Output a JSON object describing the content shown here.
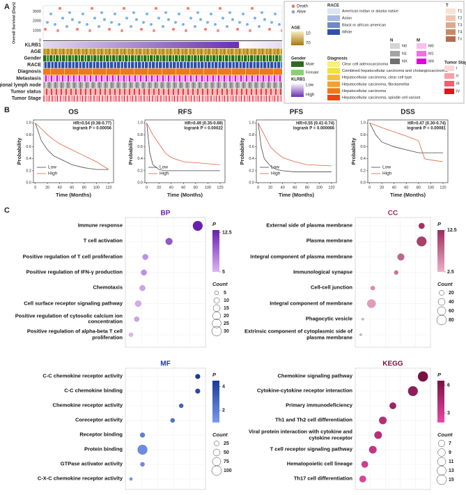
{
  "panel_labels": [
    "A",
    "B",
    "C"
  ],
  "chart_data": [
    {
      "type": "heatmap",
      "y_axis_label": "Overall Survival (Days)",
      "ylim": [
        0,
        3600
      ],
      "yticks": [
        0,
        1000,
        2000,
        3000
      ],
      "tracks": [
        "KLRB1",
        "AGE",
        "Gender",
        "RACE",
        "Diagnosis",
        "Metastasis",
        "Regional lymph node",
        "Tumor status",
        "Tumor Stage"
      ],
      "legends": [
        {
          "items": [
            {
              "label": "Death",
              "color": "#f07878"
            },
            {
              "label": "Alive",
              "color": "#7ab0f0"
            }
          ]
        },
        {
          "title": "AGE",
          "low": 10,
          "high": 70,
          "colors": [
            "#f7ecc0",
            "#a87810"
          ]
        },
        {
          "title": "RACE",
          "items": [
            {
              "label": "American indian or alaska native",
              "color": "#dde4f4"
            },
            {
              "label": "Asian",
              "color": "#a8b8e0"
            },
            {
              "label": "Black or african american",
              "color": "#6f88c8"
            },
            {
              "label": "White",
              "color": "#2f50a8"
            }
          ]
        },
        {
          "title": "N",
          "items": [
            {
              "label": "N0",
              "color": "#d4d4d4"
            },
            {
              "label": "N1",
              "color": "#a4a4a4"
            },
            {
              "label": "NX",
              "color": "#707070"
            }
          ]
        },
        {
          "title": "M",
          "items": [
            {
              "label": "M0",
              "color": "#f8c0ec"
            },
            {
              "label": "M1",
              "color": "#f070e0"
            },
            {
              "label": "MX",
              "color": "#e000e0"
            }
          ]
        },
        {
          "title": "T",
          "items": [
            {
              "label": "T1",
              "color": "#f8e2d2"
            },
            {
              "label": "T2",
              "color": "#ecc8b0"
            },
            {
              "label": "T3",
              "color": "#dca888"
            },
            {
              "label": "T4",
              "color": "#c88a66"
            },
            {
              "label": "Tx",
              "color": "#b07050"
            }
          ]
        },
        {
          "title": "Gender",
          "items": [
            {
              "label": "Male",
              "color": "#2e6b1e"
            },
            {
              "label": "Female",
              "color": "#8ad070"
            }
          ]
        },
        {
          "title": "KLRB1",
          "low": "Low",
          "high": "High",
          "colors": [
            "#ffffff",
            "#6a2fb0"
          ]
        },
        {
          "title": "Diagnosis",
          "items": [
            {
              "label": "Clear cell adenocarcinoma",
              "color": "#f8f078"
            },
            {
              "label": "Combined hepatocellular carcinoma and cholangiocarcinoma",
              "color": "#f0e040"
            },
            {
              "label": "Hepatocellular carcinoma, clear cell type",
              "color": "#f8c040"
            },
            {
              "label": "Hepatocellular carcinoma, fibrolamellar",
              "color": "#f4a030"
            },
            {
              "label": "Hepatocellular carcinoma",
              "color": "#f07818"
            },
            {
              "label": "Hepatocellular carcinoma, spindle cell variant",
              "color": "#e84810"
            }
          ]
        },
        {
          "title": "Tumor Stage",
          "items": [
            {
              "label": "I",
              "color": "#fcd8d8"
            },
            {
              "label": "II",
              "color": "#f8a0a8"
            },
            {
              "label": "III",
              "color": "#f06070"
            },
            {
              "label": "IV",
              "color": "#e81020"
            }
          ]
        }
      ]
    },
    {
      "type": "line",
      "title": "OS",
      "hr": "HR=0.54 (0.38-0.77)",
      "logrank": "logrank P = 0.00056",
      "x_label": "Time (Months)",
      "y_label": "Probability",
      "xlim": [
        -3,
        128
      ],
      "xticks": [
        0,
        20,
        40,
        60,
        80,
        100,
        120
      ],
      "ylim": [
        0,
        1.05
      ],
      "yticks": [
        {
          "value": 0,
          "label": "0.0"
        },
        {
          "value": 0.2,
          "label": "0.2"
        },
        {
          "value": 0.4,
          "label": "0.4"
        },
        {
          "value": 0.6,
          "label": "0.6"
        },
        {
          "value": 0.8,
          "label": "0.8"
        },
        {
          "value": 1,
          "label": "1.0"
        }
      ],
      "series": [
        {
          "name": "Low",
          "color": "#444444",
          "x": [
            0,
            10,
            20,
            30,
            40,
            60,
            80,
            100,
            120
          ],
          "values": [
            1,
            0.7,
            0.55,
            0.45,
            0.4,
            0.3,
            0.25,
            0.22,
            0.22
          ]
        },
        {
          "name": "High",
          "color": "#e0603a",
          "x": [
            0,
            10,
            20,
            30,
            40,
            60,
            80,
            100,
            120
          ],
          "values": [
            1,
            0.9,
            0.8,
            0.72,
            0.65,
            0.55,
            0.45,
            0.35,
            0.22
          ]
        }
      ]
    },
    {
      "type": "line",
      "title": "RFS",
      "hr": "HR=0.49 (0.35-0.69)",
      "logrank": "logrank P = 0.00022",
      "x_label": "Time (Months)",
      "y_label": "Probability",
      "xlim": [
        -3,
        128
      ],
      "xticks": [
        0,
        20,
        40,
        60,
        80,
        100,
        120
      ],
      "ylim": [
        0,
        1.05
      ],
      "yticks": [
        {
          "value": 0,
          "label": "0.0"
        },
        {
          "value": 0.2,
          "label": "0.2"
        },
        {
          "value": 0.4,
          "label": "0.4"
        },
        {
          "value": 0.6,
          "label": "0.6"
        },
        {
          "value": 0.8,
          "label": "0.8"
        },
        {
          "value": 1,
          "label": "1.0"
        }
      ],
      "series": [
        {
          "name": "Low",
          "color": "#444444",
          "x": [
            0,
            5,
            10,
            20,
            30,
            60,
            120
          ],
          "values": [
            1,
            0.5,
            0.3,
            0.22,
            0.2,
            0.2,
            0.2
          ]
        },
        {
          "name": "High",
          "color": "#e0603a",
          "x": [
            0,
            10,
            20,
            30,
            40,
            60,
            120
          ],
          "values": [
            1,
            0.8,
            0.65,
            0.5,
            0.42,
            0.35,
            0.3
          ]
        }
      ]
    },
    {
      "type": "line",
      "title": "PFS",
      "hr": "HR=0.55 (0.41-0.74)",
      "logrank": "logrank P = 0.000066",
      "x_label": "Time (Months)",
      "y_label": "Probability",
      "xlim": [
        -3,
        128
      ],
      "xticks": [
        0,
        20,
        40,
        60,
        80,
        100,
        120
      ],
      "ylim": [
        0,
        1.05
      ],
      "yticks": [
        {
          "value": 0,
          "label": "0.0"
        },
        {
          "value": 0.2,
          "label": "0.2"
        },
        {
          "value": 0.4,
          "label": "0.4"
        },
        {
          "value": 0.6,
          "label": "0.6"
        },
        {
          "value": 0.8,
          "label": "0.8"
        },
        {
          "value": 1,
          "label": "1.0"
        }
      ],
      "series": [
        {
          "name": "Low",
          "color": "#444444",
          "x": [
            0,
            5,
            10,
            20,
            30,
            40,
            60,
            120
          ],
          "values": [
            1,
            0.6,
            0.4,
            0.28,
            0.22,
            0.2,
            0.18,
            0.18
          ]
        },
        {
          "name": "High",
          "color": "#e0603a",
          "x": [
            0,
            10,
            20,
            30,
            40,
            60,
            80,
            120
          ],
          "values": [
            1,
            0.8,
            0.6,
            0.5,
            0.42,
            0.35,
            0.3,
            0.28
          ]
        }
      ]
    },
    {
      "type": "line",
      "title": "DSS",
      "hr": "HR=0.47 (0.30-0.74)",
      "logrank": "logrank P = 0.00081",
      "x_label": "Time (Months)",
      "y_label": "Probability",
      "xlim": [
        -3,
        128
      ],
      "xticks": [
        0,
        20,
        40,
        60,
        80,
        100,
        120
      ],
      "ylim": [
        0,
        1.05
      ],
      "yticks": [
        {
          "value": 0,
          "label": "0.0"
        },
        {
          "value": 0.2,
          "label": "0.2"
        },
        {
          "value": 0.4,
          "label": "0.4"
        },
        {
          "value": 0.6,
          "label": "0.6"
        },
        {
          "value": 0.8,
          "label": "0.8"
        },
        {
          "value": 1,
          "label": "1.0"
        }
      ],
      "series": [
        {
          "name": "Low",
          "color": "#444444",
          "x": [
            0,
            10,
            20,
            40,
            60,
            80,
            100,
            120
          ],
          "values": [
            1,
            0.8,
            0.68,
            0.6,
            0.55,
            0.5,
            0.5,
            0.5
          ]
        },
        {
          "name": "High",
          "color": "#e0603a",
          "x": [
            0,
            20,
            40,
            60,
            80,
            90,
            100,
            120
          ],
          "values": [
            1,
            0.92,
            0.85,
            0.78,
            0.7,
            0.4,
            0.38,
            0.35
          ]
        }
      ]
    },
    {
      "type": "dot",
      "title": "BP",
      "colors": [
        "#dcb4f4",
        "#6a1fb0"
      ],
      "xlim": [
        0,
        1
      ],
      "plim": [
        5,
        13
      ],
      "pticks": [
        5,
        12.5
      ],
      "p_title": "P",
      "count_title": "Count",
      "count_ticks": [
        5,
        10,
        15,
        20,
        25,
        30
      ],
      "categories": [
        "Immune response",
        "T cell activation",
        "Positive regulation of T cell proliferation",
        "Positive regulation of  IFN-γ production",
        "Chemotaxis",
        "Cell surface receptor signaling pathway",
        "Positive regulation of cytosolic calcium ion concentration",
        "Positive regulation of alpha-beta T cell proliferation"
      ],
      "x": [
        0.95,
        0.55,
        0.22,
        0.2,
        0.18,
        0.12,
        0.1,
        0.02
      ],
      "counts": [
        30,
        15,
        10,
        10,
        10,
        12,
        8,
        5
      ],
      "p": [
        13,
        10,
        7,
        7,
        6,
        5.5,
        6,
        5
      ]
    },
    {
      "type": "dot",
      "title": "CC",
      "colors": [
        "#ecb0c8",
        "#9c2c5c"
      ],
      "xlim": [
        0,
        1
      ],
      "plim": [
        2.5,
        12.5
      ],
      "pticks": [
        12.5,
        2.5
      ],
      "p_title": "P",
      "count_title": "Count",
      "count_ticks": [
        20,
        40,
        60,
        80
      ],
      "categories": [
        "External side of plasma membrane",
        "Plasma membrane",
        "Integral component of plasma membrane",
        "Immunological synapse",
        "Cell-cell junction",
        "Integral component of membrane",
        "Phagocytic vesicle",
        "Extrinsic component of cytoplasmic side of plasma membrane"
      ],
      "x": [
        0.93,
        0.93,
        0.62,
        0.55,
        0.2,
        0.18,
        0.05,
        0.02
      ],
      "counts": [
        30,
        80,
        40,
        15,
        15,
        60,
        5,
        5
      ],
      "p": [
        12,
        11,
        8,
        7,
        5,
        4,
        3,
        2.5
      ]
    },
    {
      "type": "dot",
      "title": "MF",
      "colors": [
        "#7a9aee",
        "#1a3a9a"
      ],
      "xlim": [
        0,
        1
      ],
      "plim": [
        1,
        4.5
      ],
      "pticks": [
        4,
        2
      ],
      "p_title": "P",
      "count_title": "Count",
      "count_ticks": [
        25,
        50,
        75,
        100
      ],
      "categories": [
        "C-C chemokine receptor activity",
        "C-C chemokine binding",
        "Chemokine receptor activity",
        "Coreceptor activity",
        "Receptor binding",
        "Protein binding",
        "GTPase activator activity",
        "C-X-C chemokine receptor activity"
      ],
      "x": [
        0.95,
        0.95,
        0.72,
        0.6,
        0.18,
        0.18,
        0.18,
        0.02
      ],
      "counts": [
        25,
        25,
        20,
        20,
        25,
        100,
        20,
        10
      ],
      "p": [
        4.5,
        4,
        3,
        2.5,
        2,
        1.5,
        1.5,
        1.2
      ]
    },
    {
      "type": "dot",
      "title": "KEGG",
      "colors": [
        "#e848a8",
        "#7a1040"
      ],
      "xlim": [
        0,
        1
      ],
      "plim": [
        2,
        6.5
      ],
      "pticks": [
        6,
        3
      ],
      "p_title": "P",
      "count_title": "Count",
      "count_ticks": [
        7,
        9,
        11,
        13,
        15
      ],
      "categories": [
        "Chemokine signaling pathway",
        "Cytokine-cytokine receptor interaction",
        "Primary immunodeficiency",
        "Th1 and Th2 cell differentiation",
        "Viral protein interaction with cytokine and cytokine receptor",
        "T cell receptor signaling pathway",
        "Hematopoietic cell lineage",
        "Th17 cell differentiation"
      ],
      "x": [
        0.95,
        0.8,
        0.5,
        0.35,
        0.28,
        0.2,
        0.08,
        0.05
      ],
      "counts": [
        16,
        15,
        7,
        9,
        9,
        9,
        7,
        7
      ],
      "p": [
        6.5,
        5.5,
        5,
        4,
        4,
        3.5,
        3,
        2.5
      ]
    }
  ]
}
